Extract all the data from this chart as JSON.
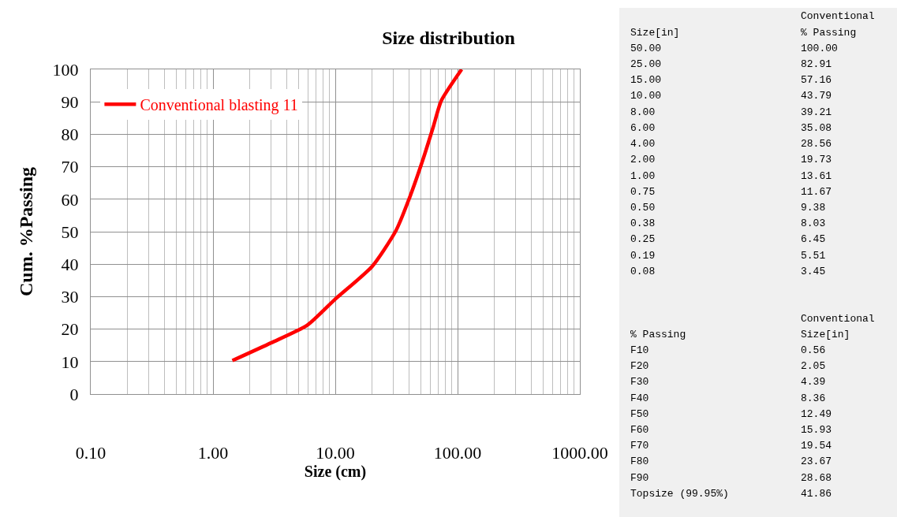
{
  "chart_data": [
    {
      "type": "line",
      "title": "Size distribution",
      "xlabel": "Size (cm)",
      "ylabel": "Cum. %Passing",
      "log": "x",
      "grid": true,
      "legend": "top left",
      "line_style": "solid",
      "marker": "none",
      "xlim": [
        0.1,
        1000
      ],
      "xticks": [
        {
          "value": 0.1,
          "label": "0.10"
        },
        {
          "value": 1,
          "label": "1.00"
        },
        {
          "value": 10,
          "label": "10.00"
        },
        {
          "value": 100,
          "label": "100.00"
        },
        {
          "value": 1000,
          "label": "1000.00"
        }
      ],
      "ylim": [
        0,
        100
      ],
      "yticks": [
        0,
        10,
        20,
        30,
        40,
        50,
        60,
        70,
        80,
        90,
        100
      ],
      "series": [
        {
          "name": "Conventional blasting 11",
          "color": "#ff0000",
          "x": [
            1.44,
            3.0,
            5.9,
            9.9,
            20.1,
            31.3,
            40.6,
            52.6,
            63.4,
            73.5,
            108
          ],
          "values": [
            10.3,
            15.8,
            21.2,
            29.1,
            39.4,
            50.3,
            60.6,
            72.7,
            82.4,
            90.3,
            100
          ]
        }
      ]
    },
    {
      "type": "other",
      "annotations": [
        "Conventional",
        "Size[in]",
        "% Passing",
        "50.00",
        "100.00",
        "25.00",
        "82.91",
        "15.00",
        "57.16",
        "10.00",
        "43.79",
        "8.00",
        "39.21",
        "6.00",
        "35.08",
        "4.00",
        "28.56",
        "2.00",
        "19.73",
        "1.00",
        "13.61",
        "0.75",
        "11.67",
        "0.50",
        "9.38",
        "0.38",
        "8.03",
        "0.25",
        "6.45",
        "0.19",
        "5.51",
        "0.08",
        "3.45"
      ]
    },
    {
      "type": "other",
      "annotations": [
        "Conventional",
        "% Passing",
        "Size[in]",
        "F10",
        "0.56",
        "F20",
        "2.05",
        "F30",
        "4.39",
        "F40",
        "8.36",
        "F50",
        "12.49",
        "F60",
        "15.93",
        "F70",
        "19.54",
        "F80",
        "23.67",
        "F90",
        "28.68",
        "Topsize (99.95%)",
        "41.86"
      ]
    }
  ]
}
